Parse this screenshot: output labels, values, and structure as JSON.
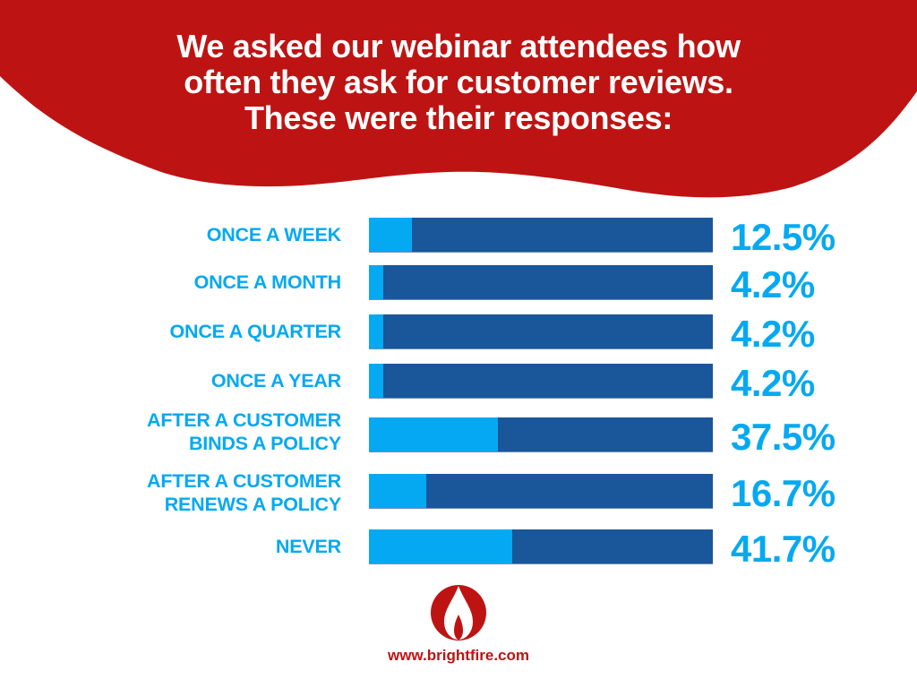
{
  "header": {
    "title_lines": [
      "We asked our webinar attendees how",
      "often they ask for customer reviews.",
      "These were their responses:"
    ]
  },
  "colors": {
    "header_red": "#bd1413",
    "fill_light_blue": "#05a9f1",
    "bar_dark_blue": "#19569a",
    "label_blue": "#05a9f1",
    "footer_red": "#bd1413"
  },
  "chart_data": {
    "type": "bar",
    "orientation": "horizontal",
    "title": "We asked our webinar attendees how often they ask for customer reviews. These were their responses:",
    "xlabel": "",
    "ylabel": "",
    "xlim": [
      0,
      100
    ],
    "grid": false,
    "legend": null,
    "categories": [
      "ONCE A WEEK",
      "ONCE A MONTH",
      "ONCE A QUARTER",
      "ONCE A YEAR",
      "AFTER A CUSTOMER BINDS A POLICY",
      "AFTER A CUSTOMER RENEWS A POLICY",
      "NEVER"
    ],
    "values": [
      12.5,
      4.2,
      4.2,
      4.2,
      37.5,
      16.7,
      41.7
    ],
    "value_labels": [
      "12.5%",
      "4.2%",
      "4.2%",
      "4.2%",
      "37.5%",
      "16.7%",
      "41.7%"
    ],
    "unit": "%"
  },
  "rows": [
    {
      "label_lines": [
        "ONCE A WEEK"
      ],
      "value": 12.5,
      "value_label": "12.5%"
    },
    {
      "label_lines": [
        "ONCE A MONTH"
      ],
      "value": 4.2,
      "value_label": "4.2%"
    },
    {
      "label_lines": [
        "ONCE A QUARTER"
      ],
      "value": 4.2,
      "value_label": "4.2%"
    },
    {
      "label_lines": [
        "ONCE A YEAR"
      ],
      "value": 4.2,
      "value_label": "4.2%"
    },
    {
      "label_lines": [
        "AFTER A CUSTOMER",
        "BINDS A POLICY"
      ],
      "value": 37.5,
      "value_label": "37.5%"
    },
    {
      "label_lines": [
        "AFTER A CUSTOMER",
        "RENEWS A POLICY"
      ],
      "value": 16.7,
      "value_label": "16.7%"
    },
    {
      "label_lines": [
        "NEVER"
      ],
      "value": 41.7,
      "value_label": "41.7%"
    }
  ],
  "footer": {
    "logo_icon": "flame-logo-icon",
    "url": "www.brightfire.com"
  }
}
